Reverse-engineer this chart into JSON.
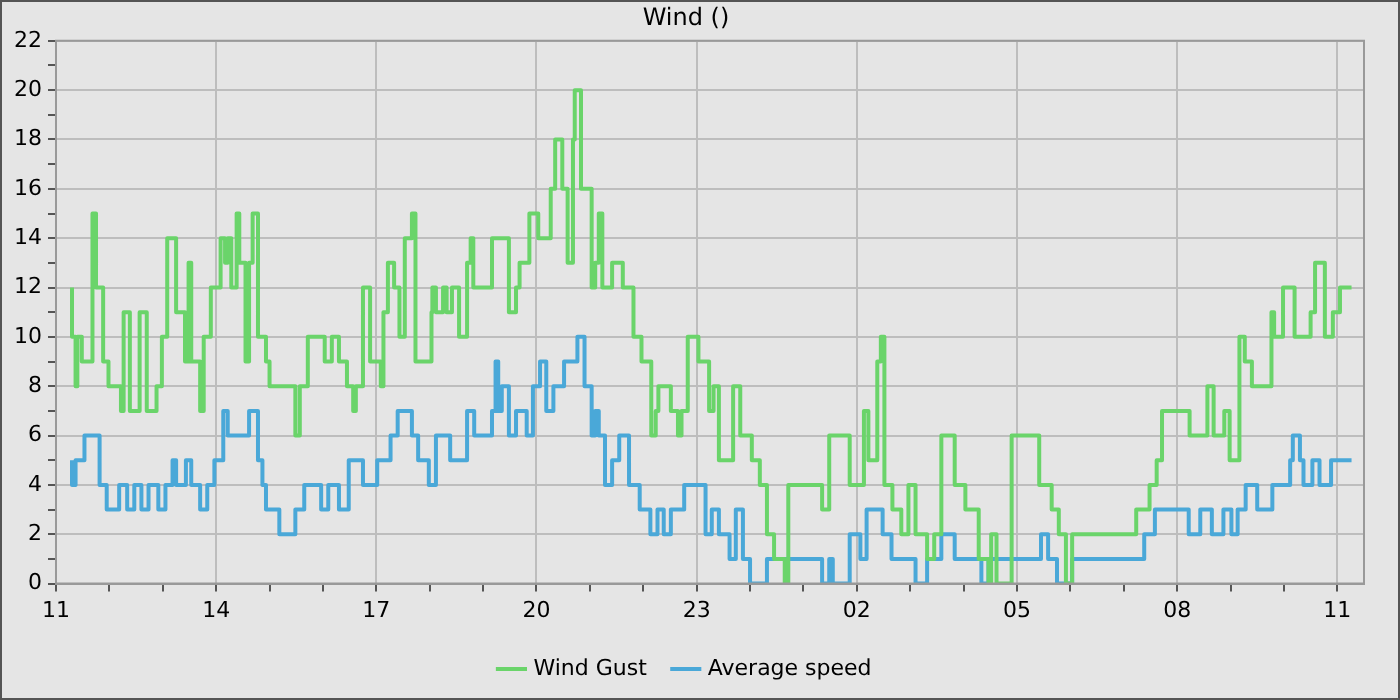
{
  "chart_data": {
    "type": "step",
    "title": "Wind ()",
    "legend": "bottom",
    "grid": true,
    "marker": "none",
    "xlim": [
      "--01-01T11:00",
      "--01-02T11:30"
    ],
    "xticks": [
      {
        "value": "--01-01T11:00",
        "label": "11"
      },
      {
        "value": "--01-01T12:00",
        "label": null
      },
      {
        "value": "--01-01T13:00",
        "label": null
      },
      {
        "value": "--01-01T14:00",
        "label": "14"
      },
      {
        "value": "--01-01T15:00",
        "label": null
      },
      {
        "value": "--01-01T16:00",
        "label": null
      },
      {
        "value": "--01-01T17:00",
        "label": "17"
      },
      {
        "value": "--01-01T18:00",
        "label": null
      },
      {
        "value": "--01-01T19:00",
        "label": null
      },
      {
        "value": "--01-01T20:00",
        "label": "20"
      },
      {
        "value": "--01-01T21:00",
        "label": null
      },
      {
        "value": "--01-01T22:00",
        "label": null
      },
      {
        "value": "--01-01T23:00",
        "label": "23"
      },
      {
        "value": "--01-02T00:00",
        "label": null
      },
      {
        "value": "--01-02T01:00",
        "label": null
      },
      {
        "value": "--01-02T02:00",
        "label": "02"
      },
      {
        "value": "--01-02T03:00",
        "label": null
      },
      {
        "value": "--01-02T04:00",
        "label": null
      },
      {
        "value": "--01-02T05:00",
        "label": "05"
      },
      {
        "value": "--01-02T06:00",
        "label": null
      },
      {
        "value": "--01-02T07:00",
        "label": null
      },
      {
        "value": "--01-02T08:00",
        "label": "08"
      },
      {
        "value": "--01-02T09:00",
        "label": null
      },
      {
        "value": "--01-02T10:00",
        "label": null
      },
      {
        "value": "--01-02T11:00",
        "label": "11"
      }
    ],
    "ylim": [
      0,
      22
    ],
    "yticks": [
      0,
      {
        "value": 1,
        "label": null
      },
      2,
      {
        "value": 3,
        "label": null
      },
      4,
      {
        "value": 5,
        "label": null
      },
      6,
      {
        "value": 7,
        "label": null
      },
      8,
      {
        "value": 9,
        "label": null
      },
      10,
      {
        "value": 11,
        "label": null
      },
      12,
      {
        "value": 13,
        "label": null
      },
      14,
      {
        "value": 15,
        "label": null
      },
      16,
      {
        "value": 17,
        "label": null
      },
      18,
      {
        "value": 19,
        "label": null
      },
      20,
      {
        "value": 21,
        "label": null
      },
      22
    ],
    "series": [
      {
        "name": "Wind Gust",
        "color": "#6ad46a",
        "x": [
          "--01-01T11:18",
          "--01-01T11:22",
          "--01-01T11:24",
          "--01-01T11:29",
          "--01-01T11:41",
          "--01-01T11:45",
          "--01-01T11:53",
          "--01-01T11:59",
          "--01-01T12:13",
          "--01-01T12:16",
          "--01-01T12:23",
          "--01-01T12:34",
          "--01-01T12:42",
          "--01-01T12:53",
          "--01-01T12:59",
          "--01-01T13:05",
          "--01-01T13:15",
          "--01-01T13:25",
          "--01-01T13:29",
          "--01-01T13:32",
          "--01-01T13:42",
          "--01-01T13:46",
          "--01-01T13:54",
          "--01-01T14:05",
          "--01-01T14:10",
          "--01-01T14:13",
          "--01-01T14:17",
          "--01-01T14:23",
          "--01-01T14:26",
          "--01-01T14:33",
          "--01-01T14:37",
          "--01-01T14:41",
          "--01-01T14:47",
          "--01-01T14:56",
          "--01-01T15:00",
          "--01-01T15:10",
          "--01-01T15:29",
          "--01-01T15:34",
          "--01-01T15:43",
          "--01-01T16:02",
          "--01-01T16:10",
          "--01-01T16:18",
          "--01-01T16:27",
          "--01-01T16:34",
          "--01-01T16:37",
          "--01-01T16:45",
          "--01-01T16:53",
          "--01-01T17:05",
          "--01-01T17:08",
          "--01-01T17:13",
          "--01-01T17:20",
          "--01-01T17:26",
          "--01-01T17:32",
          "--01-01T17:40",
          "--01-01T17:44",
          "--01-01T18:02",
          "--01-01T18:03",
          "--01-01T18:07",
          "--01-01T18:15",
          "--01-01T18:19",
          "--01-01T18:25",
          "--01-01T18:33",
          "--01-01T18:42",
          "--01-01T18:46",
          "--01-01T18:49",
          "--01-01T19:10",
          "--01-01T19:29",
          "--01-01T19:37",
          "--01-01T19:41",
          "--01-01T19:52",
          "--01-01T20:02",
          "--01-01T20:16",
          "--01-01T20:21",
          "--01-01T20:29",
          "--01-01T20:35",
          "--01-01T20:41",
          "--01-01T20:43",
          "--01-01T20:50",
          "--01-01T21:02",
          "--01-01T21:06",
          "--01-01T21:10",
          "--01-01T21:14",
          "--01-01T21:25",
          "--01-01T21:37",
          "--01-01T21:49",
          "--01-01T21:58",
          "--01-01T22:09",
          "--01-01T22:14",
          "--01-01T22:17",
          "--01-01T22:31",
          "--01-01T22:39",
          "--01-01T22:43",
          "--01-01T22:50",
          "--01-01T23:02",
          "--01-01T23:14",
          "--01-01T23:19",
          "--01-01T23:25",
          "--01-01T23:41",
          "--01-01T23:49",
          "--01-02T00:02",
          "--01-02T00:11",
          "--01-02T00:19",
          "--01-02T00:27",
          "--01-02T00:39",
          "--01-02T00:43",
          "--01-02T01:21",
          "--01-02T01:29",
          "--01-02T01:52",
          "--01-02T02:08",
          "--01-02T02:13",
          "--01-02T02:23",
          "--01-02T02:27",
          "--01-02T02:31",
          "--01-02T02:40",
          "--01-02T02:50",
          "--01-02T02:58",
          "--01-02T03:06",
          "--01-02T03:19",
          "--01-02T03:27",
          "--01-02T03:35",
          "--01-02T03:50",
          "--01-02T04:02",
          "--01-02T04:17",
          "--01-02T04:28",
          "--01-02T04:31",
          "--01-02T04:37",
          "--01-02T04:54",
          "--01-02T05:25",
          "--01-02T05:39",
          "--01-02T05:47",
          "--01-02T05:55",
          "--01-02T06:02",
          "--01-02T07:14",
          "--01-02T07:29",
          "--01-02T07:37",
          "--01-02T07:43",
          "--01-02T08:14",
          "--01-02T08:34",
          "--01-02T08:41",
          "--01-02T08:53",
          "--01-02T08:59",
          "--01-02T09:10",
          "--01-02T09:16",
          "--01-02T09:24",
          "--01-02T09:46",
          "--01-02T09:49",
          "--01-02T09:59",
          "--01-02T10:12",
          "--01-02T10:30",
          "--01-02T10:35",
          "--01-02T10:46",
          "--01-02T10:55",
          "--01-02T11:03",
          "--01-02T11:11",
          "--01-02T11:16"
        ],
        "values": [
          12,
          10,
          8,
          10,
          9,
          15,
          12,
          9,
          8,
          7,
          11,
          7,
          11,
          7,
          8,
          10,
          14,
          11,
          9,
          13,
          9,
          7,
          10,
          12,
          14,
          13,
          14,
          12,
          15,
          13,
          9,
          13,
          15,
          10,
          9,
          8,
          8,
          6,
          8,
          10,
          9,
          10,
          9,
          8,
          7,
          8,
          12,
          9,
          8,
          11,
          13,
          12,
          10,
          14,
          15,
          9,
          11,
          12,
          11,
          12,
          11,
          12,
          10,
          13,
          14,
          12,
          14,
          11,
          12,
          13,
          15,
          14,
          16,
          18,
          16,
          13,
          18,
          20,
          16,
          12,
          13,
          15,
          12,
          13,
          12,
          10,
          9,
          6,
          7,
          8,
          7,
          6,
          7,
          10,
          9,
          7,
          8,
          5,
          8,
          6,
          5,
          4,
          2,
          1,
          0,
          4,
          3,
          6,
          4,
          7,
          5,
          9,
          10,
          4,
          3,
          2,
          4,
          2,
          1,
          2,
          6,
          4,
          3,
          1,
          0,
          2,
          0,
          6,
          4,
          3,
          2,
          0,
          2,
          3,
          4,
          5,
          7,
          6,
          8,
          6,
          7,
          5,
          10,
          9,
          8,
          11,
          10,
          12,
          10,
          11,
          13,
          10,
          11,
          12,
          12
        ]
      },
      {
        "name": "Average speed",
        "color": "#4aa8d8",
        "x": [
          "--01-01T11:18",
          "--01-01T11:22",
          "--01-01T11:32",
          "--01-01T11:49",
          "--01-01T11:57",
          "--01-01T12:11",
          "--01-01T12:20",
          "--01-01T12:28",
          "--01-01T12:36",
          "--01-01T12:44",
          "--01-01T12:55",
          "--01-01T13:03",
          "--01-01T13:11",
          "--01-01T13:15",
          "--01-01T13:26",
          "--01-01T13:32",
          "--01-01T13:42",
          "--01-01T13:50",
          "--01-01T13:58",
          "--01-01T14:08",
          "--01-01T14:13",
          "--01-01T14:21",
          "--01-01T14:37",
          "--01-01T14:47",
          "--01-01T14:52",
          "--01-01T14:56",
          "--01-01T15:11",
          "--01-01T15:29",
          "--01-01T15:39",
          "--01-01T15:58",
          "--01-01T16:06",
          "--01-01T16:18",
          "--01-01T16:29",
          "--01-01T16:45",
          "--01-01T17:01",
          "--01-01T17:16",
          "--01-01T17:24",
          "--01-01T17:40",
          "--01-01T17:47",
          "--01-01T17:59",
          "--01-01T18:07",
          "--01-01T18:23",
          "--01-01T18:42",
          "--01-01T18:50",
          "--01-01T19:10",
          "--01-01T19:14",
          "--01-01T19:17",
          "--01-01T19:21",
          "--01-01T19:29",
          "--01-01T19:37",
          "--01-01T19:49",
          "--01-01T19:56",
          "--01-01T20:04",
          "--01-01T20:11",
          "--01-01T20:19",
          "--01-01T20:31",
          "--01-01T20:46",
          "--01-01T20:54",
          "--01-01T21:02",
          "--01-01T21:06",
          "--01-01T21:10",
          "--01-01T21:17",
          "--01-01T21:25",
          "--01-01T21:33",
          "--01-01T21:44",
          "--01-01T21:56",
          "--01-01T22:08",
          "--01-01T22:16",
          "--01-01T22:23",
          "--01-01T22:31",
          "--01-01T22:46",
          "--01-01T23:10",
          "--01-01T23:17",
          "--01-01T23:25",
          "--01-01T23:37",
          "--01-01T23:44",
          "--01-01T23:52",
          "--01-02T00:00",
          "--01-02T00:19",
          "--01-02T01:21",
          "--01-02T01:29",
          "--01-02T01:33",
          "--01-02T01:52",
          "--01-02T02:04",
          "--01-02T02:11",
          "--01-02T02:29",
          "--01-02T02:39",
          "--01-02T02:50",
          "--01-02T03:06",
          "--01-02T03:19",
          "--01-02T03:35",
          "--01-02T03:50",
          "--01-02T04:20",
          "--01-02T04:28",
          "--01-02T05:27",
          "--01-02T05:35",
          "--01-02T05:45",
          "--01-02T06:02",
          "--01-02T07:23",
          "--01-02T07:35",
          "--01-02T08:13",
          "--01-02T08:26",
          "--01-02T08:39",
          "--01-02T08:52",
          "--01-02T09:01",
          "--01-02T09:08",
          "--01-02T09:17",
          "--01-02T09:30",
          "--01-02T09:47",
          "--01-02T10:07",
          "--01-02T10:10",
          "--01-02T10:18",
          "--01-02T10:22",
          "--01-02T10:32",
          "--01-02T10:40",
          "--01-02T10:53",
          "--01-02T11:05",
          "--01-02T11:16"
        ],
        "values": [
          5,
          4,
          5,
          6,
          4,
          3,
          4,
          3,
          4,
          3,
          4,
          3,
          4,
          5,
          4,
          5,
          4,
          3,
          4,
          5,
          7,
          6,
          6,
          7,
          5,
          4,
          3,
          2,
          3,
          4,
          3,
          4,
          3,
          5,
          4,
          5,
          6,
          7,
          6,
          5,
          4,
          6,
          5,
          7,
          6,
          7,
          9,
          7,
          8,
          6,
          7,
          6,
          8,
          9,
          7,
          8,
          9,
          10,
          8,
          6,
          7,
          6,
          4,
          5,
          6,
          4,
          3,
          2,
          3,
          2,
          3,
          4,
          2,
          3,
          2,
          1,
          3,
          1,
          0,
          1,
          0,
          1,
          0,
          2,
          1,
          3,
          2,
          1,
          1,
          0,
          1,
          2,
          1,
          0,
          1,
          2,
          1,
          0,
          1,
          2,
          3,
          2,
          3,
          2,
          3,
          2,
          3,
          4,
          3,
          4,
          5,
          6,
          5,
          4,
          5,
          4,
          5,
          5
        ]
      }
    ]
  }
}
